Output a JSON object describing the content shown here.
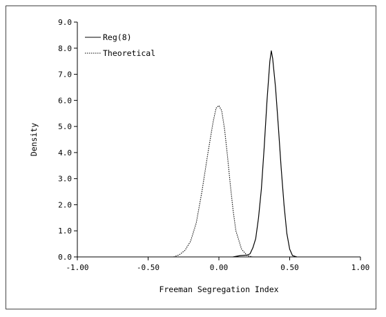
{
  "chart_data": {
    "type": "line",
    "title": "",
    "xlabel": "Freeman Segregation Index",
    "ylabel": "Density",
    "xlim": [
      -1.0,
      1.0
    ],
    "ylim": [
      0.0,
      9.0
    ],
    "x_ticks": [
      "-1.00",
      "-0.50",
      "0.00",
      "0.50",
      "1.00"
    ],
    "y_ticks": [
      "0.0",
      "1.0",
      "2.0",
      "3.0",
      "4.0",
      "5.0",
      "6.0",
      "7.0",
      "8.0",
      "9.0"
    ],
    "grid": false,
    "legend_position": "top-left",
    "series": [
      {
        "name": "Reg(8)",
        "style": "solid",
        "color": "#000000",
        "x": [
          0.1,
          0.15,
          0.2,
          0.22,
          0.24,
          0.26,
          0.28,
          0.3,
          0.32,
          0.34,
          0.36,
          0.37,
          0.38,
          0.4,
          0.42,
          0.44,
          0.46,
          0.48,
          0.5,
          0.52,
          0.55
        ],
        "y": [
          0.0,
          0.05,
          0.07,
          0.12,
          0.35,
          0.7,
          1.5,
          2.6,
          4.2,
          6.0,
          7.5,
          7.9,
          7.6,
          6.5,
          5.0,
          3.4,
          2.0,
          0.9,
          0.3,
          0.05,
          0.0
        ]
      },
      {
        "name": "Theoretical",
        "style": "dotted",
        "color": "#000000",
        "x": [
          -0.32,
          -0.28,
          -0.24,
          -0.2,
          -0.16,
          -0.12,
          -0.08,
          -0.04,
          -0.02,
          0.0,
          0.02,
          0.04,
          0.06,
          0.08,
          0.1,
          0.12,
          0.16,
          0.2,
          0.24
        ],
        "y": [
          0.0,
          0.08,
          0.25,
          0.6,
          1.3,
          2.5,
          3.9,
          5.2,
          5.7,
          5.8,
          5.6,
          4.9,
          3.9,
          2.8,
          1.8,
          1.0,
          0.3,
          0.05,
          0.0
        ]
      }
    ]
  }
}
